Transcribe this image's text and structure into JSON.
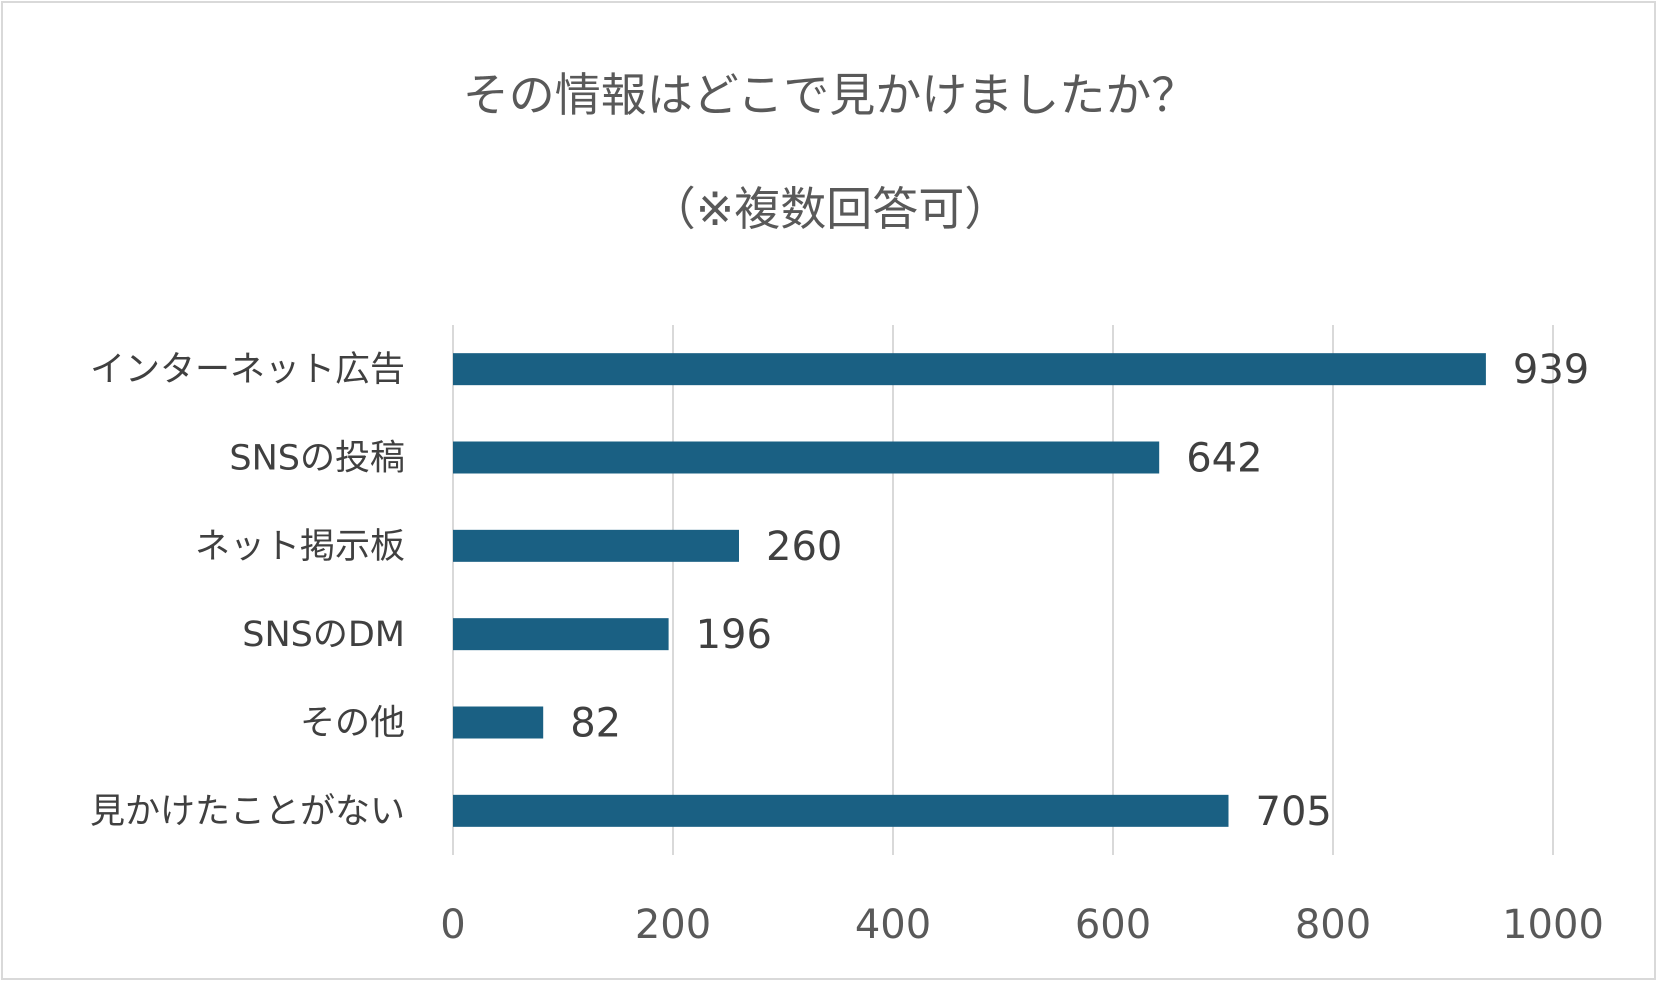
{
  "chart_data": {
    "type": "bar",
    "orientation": "horizontal",
    "title": "その情報はどこで見かけましたか？",
    "subtitle": "（※複数回答可）",
    "categories": [
      "インターネット広告",
      "SNSの投稿",
      "ネット掲示板",
      "SNSのDM",
      "その他",
      "見かけたことがない"
    ],
    "values": [
      939,
      642,
      260,
      196,
      82,
      705
    ],
    "xlim": [
      0,
      1000
    ],
    "ticks": [
      0,
      200,
      400,
      600,
      800,
      1000
    ],
    "grid": true,
    "legend": "none",
    "bar_color": "#1a6083",
    "grid_color": "#d9d9d9"
  }
}
